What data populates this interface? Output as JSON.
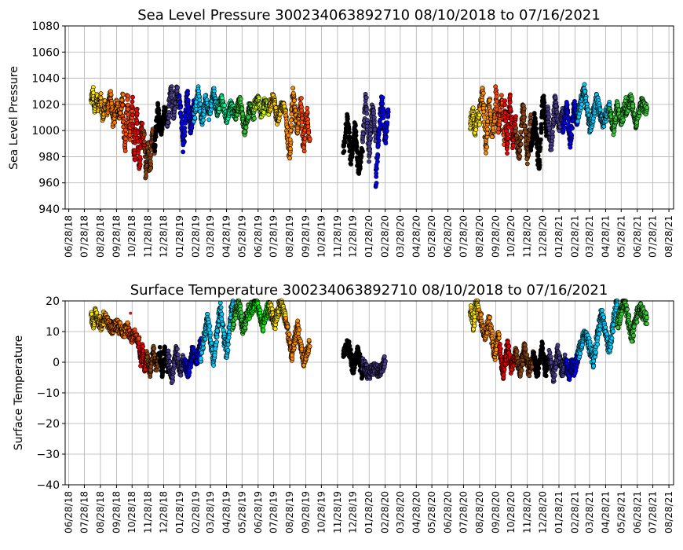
{
  "chart_data": [
    {
      "type": "scatter",
      "title": "Sea Level Pressure 300234063892710  08/10/2018 to 07/16/2021",
      "xlabel": "",
      "ylabel": "Sea Level Pressure",
      "ylim": [
        940,
        1080
      ],
      "yticks": [
        "940",
        "960",
        "980",
        "1000",
        "1020",
        "1040",
        "1060",
        "1080"
      ],
      "xticks": [
        "06/28/18",
        "07/28/18",
        "08/28/18",
        "09/28/18",
        "10/28/18",
        "11/28/18",
        "12/28/18",
        "01/28/19",
        "02/28/19",
        "03/28/19",
        "04/28/19",
        "05/28/19",
        "06/28/19",
        "07/28/19",
        "08/28/19",
        "09/28/19",
        "10/28/19",
        "11/28/19",
        "12/28/19",
        "01/28/20",
        "02/28/20",
        "03/28/20",
        "04/28/20",
        "05/28/20",
        "06/28/20",
        "07/28/20",
        "08/28/20",
        "09/28/20",
        "10/28/20",
        "11/28/20",
        "12/28/20",
        "01/28/21",
        "02/28/21",
        "03/28/21",
        "04/28/21",
        "05/28/21",
        "06/28/21",
        "07/28/21",
        "08/28/21"
      ],
      "grid": true,
      "series": [
        {
          "x_start": "2018-08-10",
          "x_end": "2018-08-24",
          "color": "#ffe600",
          "values": [
            1022,
            1030,
            1015,
            1025,
            1020
          ]
        },
        {
          "x_start": "2018-08-24",
          "x_end": "2018-09-10",
          "color": "#ffb000",
          "values": [
            1018,
            1026,
            1010,
            1020,
            1015
          ]
        },
        {
          "x_start": "2018-09-10",
          "x_end": "2018-10-10",
          "color": "#ff7a00",
          "values": [
            1015,
            1028,
            1005,
            1022,
            1010,
            1025
          ]
        },
        {
          "x_start": "2018-10-10",
          "x_end": "2018-10-28",
          "color": "#ff4500",
          "values": [
            1020,
            985,
            1025,
            995,
            1015
          ]
        },
        {
          "x_start": "2018-10-28",
          "x_end": "2018-11-20",
          "color": "#ee0000",
          "values": [
            1025,
            975,
            1015,
            970,
            1005,
            990
          ]
        },
        {
          "x_start": "2018-11-20",
          "x_end": "2018-12-10",
          "color": "#8b4513",
          "values": [
            1000,
            965,
            990,
            968,
            1000,
            985
          ]
        },
        {
          "x_start": "2018-12-10",
          "x_end": "2019-01-05",
          "color": "#000000",
          "values": [
            985,
            1018,
            998,
            1015,
            1005
          ]
        },
        {
          "x_start": "2019-01-05",
          "x_end": "2019-01-28",
          "color": "#483d8b",
          "values": [
            1005,
            1033,
            1012,
            1030,
            1020
          ]
        },
        {
          "x_start": "2019-01-28",
          "x_end": "2019-02-25",
          "color": "#0000ff",
          "values": [
            1025,
            985,
            1030,
            1000,
            1020
          ]
        },
        {
          "x_start": "2019-02-25",
          "x_end": "2019-04-10",
          "color": "#00ccff",
          "values": [
            1010,
            1032,
            1005,
            1025,
            1012,
            1030,
            1015
          ]
        },
        {
          "x_start": "2019-04-10",
          "x_end": "2019-05-15",
          "color": "#00ff99",
          "values": [
            1015,
            1025,
            1008,
            1020,
            1012
          ]
        },
        {
          "x_start": "2019-05-15",
          "x_end": "2019-06-20",
          "color": "#33cc33",
          "values": [
            1012,
            1022,
            1000,
            1018,
            1010
          ]
        },
        {
          "x_start": "2019-06-20",
          "x_end": "2019-07-20",
          "color": "#ccff00",
          "values": [
            1018,
            1024,
            1012,
            1022,
            1015
          ]
        },
        {
          "x_start": "2019-07-20",
          "x_end": "2019-08-20",
          "color": "#ffcc00",
          "values": [
            1018,
            1025,
            1008,
            1020,
            1015
          ]
        },
        {
          "x_start": "2019-08-20",
          "x_end": "2019-09-18",
          "color": "#ff8c00",
          "values": [
            1012,
            980,
            1030,
            1000,
            1020
          ]
        },
        {
          "x_start": "2019-09-18",
          "x_end": "2019-10-05",
          "color": "#ff4500",
          "values": [
            1025,
            985,
            1015,
            990
          ]
        },
        {
          "x_start": "2019-12-10",
          "x_end": "2020-01-15",
          "color": "#000000",
          "values": [
            985,
            1010,
            975,
            1005,
            968,
            985
          ]
        },
        {
          "x_start": "2020-01-15",
          "x_end": "2020-02-10",
          "color": "#483d8b",
          "values": [
            990,
            1026,
            980,
            1020,
            995
          ]
        },
        {
          "x_start": "2020-02-10",
          "x_end": "2020-03-05",
          "color": "#0000ff",
          "values": [
            960,
            1000,
            1024,
            990,
            1018
          ]
        },
        {
          "x_start": "2020-08-10",
          "x_end": "2020-08-28",
          "color": "#ffe600",
          "values": [
            1005,
            1015,
            998,
            1012,
            1008
          ]
        },
        {
          "x_start": "2020-08-28",
          "x_end": "2020-09-28",
          "color": "#ff8c00",
          "values": [
            1015,
            1030,
            985,
            1025,
            995,
            1020
          ]
        },
        {
          "x_start": "2020-09-28",
          "x_end": "2020-10-15",
          "color": "#ff4500",
          "values": [
            1032,
            1000,
            1025,
            990
          ]
        },
        {
          "x_start": "2020-10-15",
          "x_end": "2020-11-05",
          "color": "#ee0000",
          "values": [
            1020,
            985,
            1025,
            990,
            1010
          ]
        },
        {
          "x_start": "2020-11-05",
          "x_end": "2020-12-05",
          "color": "#8b4513",
          "values": [
            1000,
            980,
            1020,
            978,
            1010
          ]
        },
        {
          "x_start": "2020-12-05",
          "x_end": "2021-01-05",
          "color": "#000000",
          "values": [
            985,
            1010,
            970,
            1028,
            995
          ]
        },
        {
          "x_start": "2021-01-05",
          "x_end": "2021-02-05",
          "color": "#483d8b",
          "values": [
            1020,
            985,
            1025,
            1000,
            1015
          ]
        },
        {
          "x_start": "2021-02-05",
          "x_end": "2021-03-05",
          "color": "#0000ff",
          "values": [
            1000,
            1022,
            990,
            1020,
            1005
          ]
        },
        {
          "x_start": "2021-03-05",
          "x_end": "2021-05-05",
          "color": "#00ccff",
          "values": [
            1010,
            1032,
            1000,
            1025,
            1005,
            1020
          ]
        },
        {
          "x_start": "2021-05-05",
          "x_end": "2021-06-05",
          "color": "#33cc33",
          "values": [
            1015,
            1000,
            1020,
            1005,
            1022
          ]
        },
        {
          "x_start": "2021-06-05",
          "x_end": "2021-07-16",
          "color": "#33cc33",
          "values": [
            1012,
            1025,
            1005,
            1022,
            1015
          ]
        }
      ]
    },
    {
      "type": "scatter",
      "title": "Surface Temperature 300234063892710  08/10/2018 to 07/16/2021",
      "xlabel": "",
      "ylabel": "Surface Temperature",
      "ylim": [
        -40,
        20
      ],
      "yticks": [
        "−40",
        "−30",
        "−20",
        "−10",
        "0",
        "10",
        "20"
      ],
      "xticks": [
        "06/28/18",
        "07/28/18",
        "08/28/18",
        "09/28/18",
        "10/28/18",
        "11/28/18",
        "12/28/18",
        "01/28/19",
        "02/28/19",
        "03/28/19",
        "04/28/19",
        "05/28/19",
        "06/28/19",
        "07/28/19",
        "08/28/19",
        "09/28/19",
        "10/28/19",
        "11/28/19",
        "12/28/19",
        "01/28/20",
        "02/28/20",
        "03/28/20",
        "04/28/20",
        "05/28/20",
        "06/28/20",
        "07/28/20",
        "08/28/20",
        "09/28/20",
        "10/28/20",
        "11/28/20",
        "12/28/20",
        "01/28/21",
        "02/28/21",
        "03/28/21",
        "04/28/21",
        "05/28/21",
        "06/28/21",
        "07/28/21",
        "08/28/21"
      ],
      "grid": true,
      "series": [
        {
          "x_start": "2018-08-10",
          "x_end": "2018-08-24",
          "color": "#ffe600",
          "values": [
            15,
            13,
            16,
            14
          ]
        },
        {
          "x_start": "2018-08-24",
          "x_end": "2018-09-10",
          "color": "#ffb000",
          "values": [
            14,
            12,
            15,
            13
          ]
        },
        {
          "x_start": "2018-09-10",
          "x_end": "2018-10-20",
          "color": "#ff7a00",
          "values": [
            13,
            11,
            12,
            10,
            11
          ]
        },
        {
          "x_start": "2018-10-20",
          "x_end": "2018-11-10",
          "color": "#ff4500",
          "values": [
            10,
            8,
            9,
            6
          ]
        },
        {
          "x_start": "2018-11-10",
          "x_end": "2018-11-25",
          "color": "#ee0000",
          "values": [
            6,
            0,
            4,
            -2,
            2
          ]
        },
        {
          "x_start": "2018-11-25",
          "x_end": "2018-12-20",
          "color": "#8b4513",
          "values": [
            3,
            -4,
            4,
            -2,
            2
          ]
        },
        {
          "x_start": "2018-12-20",
          "x_end": "2019-01-05",
          "color": "#000000",
          "values": [
            4,
            -4,
            5,
            -2
          ]
        },
        {
          "x_start": "2019-01-05",
          "x_end": "2019-02-05",
          "color": "#483d8b",
          "values": [
            2,
            -5,
            4,
            -3,
            1
          ]
        },
        {
          "x_start": "2019-02-05",
          "x_end": "2019-03-10",
          "color": "#0000ff",
          "values": [
            0,
            -3,
            3,
            1,
            6
          ]
        },
        {
          "x_start": "2019-03-10",
          "x_end": "2019-05-10",
          "color": "#00ccff",
          "values": [
            2,
            15,
            0,
            18,
            3,
            20
          ]
        },
        {
          "x_start": "2019-05-10",
          "x_end": "2019-06-10",
          "color": "#33cc33",
          "values": [
            12,
            20,
            10,
            18
          ]
        },
        {
          "x_start": "2019-06-10",
          "x_end": "2019-07-20",
          "color": "#00ff00",
          "values": [
            16,
            20,
            12,
            19
          ]
        },
        {
          "x_start": "2019-07-20",
          "x_end": "2019-08-20",
          "color": "#ffe600",
          "values": [
            18,
            12,
            20,
            14
          ]
        },
        {
          "x_start": "2019-08-20",
          "x_end": "2019-10-05",
          "color": "#ff8c00",
          "values": [
            15,
            2,
            12,
            0,
            6
          ]
        },
        {
          "x_start": "2019-12-10",
          "x_end": "2020-01-15",
          "color": "#000000",
          "values": [
            2,
            6,
            -2,
            4,
            -4
          ]
        },
        {
          "x_start": "2020-01-15",
          "x_end": "2020-02-28",
          "color": "#483d8b",
          "values": [
            0,
            -4,
            -2,
            -3,
            0
          ]
        },
        {
          "x_start": "2020-08-10",
          "x_end": "2020-08-28",
          "color": "#ffe600",
          "values": [
            18,
            12,
            20,
            14
          ]
        },
        {
          "x_start": "2020-08-28",
          "x_end": "2020-10-05",
          "color": "#ff8c00",
          "values": [
            16,
            8,
            14,
            2,
            10
          ]
        },
        {
          "x_start": "2020-10-05",
          "x_end": "2020-11-05",
          "color": "#ee0000",
          "values": [
            5,
            -4,
            6,
            -2,
            3
          ]
        },
        {
          "x_start": "2020-11-05",
          "x_end": "2020-12-10",
          "color": "#8b4513",
          "values": [
            4,
            -4,
            5,
            -3,
            2
          ]
        },
        {
          "x_start": "2020-12-10",
          "x_end": "2021-01-10",
          "color": "#000000",
          "values": [
            3,
            -4,
            5,
            -3,
            2
          ]
        },
        {
          "x_start": "2021-01-10",
          "x_end": "2021-02-10",
          "color": "#483d8b",
          "values": [
            2,
            -5,
            4,
            -3,
            1
          ]
        },
        {
          "x_start": "2021-02-10",
          "x_end": "2021-03-05",
          "color": "#0000ff",
          "values": [
            0,
            -4,
            -1,
            -3,
            2
          ]
        },
        {
          "x_start": "2021-03-05",
          "x_end": "2021-05-20",
          "color": "#00ccff",
          "values": [
            2,
            10,
            0,
            16,
            4,
            20
          ]
        },
        {
          "x_start": "2021-05-20",
          "x_end": "2021-07-16",
          "color": "#33cc33",
          "values": [
            12,
            20,
            8,
            18,
            14
          ]
        }
      ],
      "outliers": [
        {
          "x": "2018-10-25",
          "y": 16,
          "color": "#b22222"
        }
      ]
    }
  ]
}
